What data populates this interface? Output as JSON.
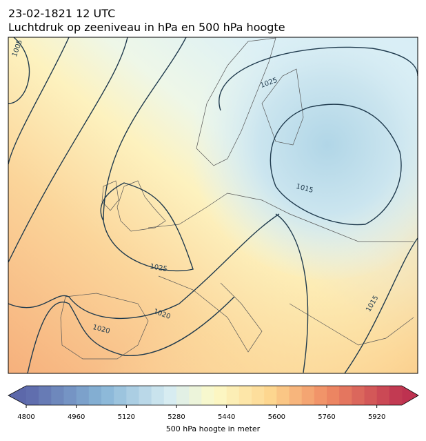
{
  "header": {
    "date": "23-02-1821 12 UTC",
    "title": "Luchtdruk op zeeniveau in hPa en 500 hPa hoogte"
  },
  "map": {
    "isobar_labels": [
      "1005",
      "1025",
      "1015",
      "1025",
      "1020",
      "1020",
      "1015"
    ]
  },
  "colorbar": {
    "label": "500 hPa hoogte in meter",
    "range": [
      4800,
      6000
    ],
    "ticks": [
      4800,
      4960,
      5120,
      5280,
      5440,
      5600,
      5760,
      5920
    ]
  }
}
